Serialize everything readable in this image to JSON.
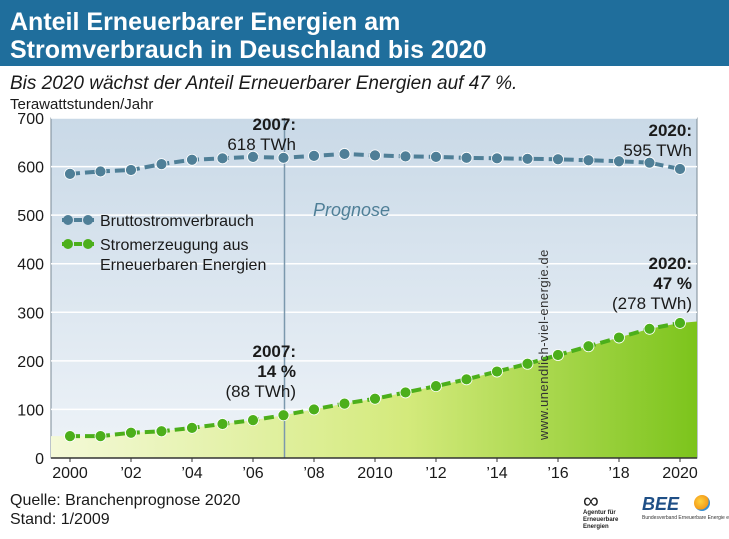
{
  "title_lines": [
    "Anteil Erneuerbarer Energien am",
    "Stromverbrauch in Deuschland bis 2020"
  ],
  "subtitle": "Bis 2020 wächst der Anteil Erneuerbarer Energien auf 47 %.",
  "source_lines": [
    "Quelle: Branchenprognose 2020",
    "Stand: 1/2009"
  ],
  "watermark": "www.unendlich-viel-energie.de",
  "logos": {
    "agentur_text": "Agentur für Erneuerbare Energien",
    "bee_name": "BEE",
    "bee_sub": "Bundesverband Erneuerbare Energie e.V."
  },
  "colors": {
    "title_bg": "#1f6e9c",
    "consumption": "#4f7f97",
    "renewables": "#4caf1b",
    "renewables_fill": "#9dd22a",
    "plot_bg": "#d6e3ee",
    "forecast_line": "#7b98ad"
  },
  "chart_data": {
    "type": "line",
    "ylabel": "Terawattstunden/Jahr",
    "ylim": [
      0,
      700
    ],
    "yticks": [
      0,
      100,
      200,
      300,
      400,
      500,
      600,
      700
    ],
    "x": [
      2000,
      2001,
      2002,
      2003,
      2004,
      2005,
      2006,
      2007,
      2008,
      2009,
      2010,
      2011,
      2012,
      2013,
      2014,
      2015,
      2016,
      2017,
      2018,
      2019,
      2020
    ],
    "xtick_labels": [
      "2000",
      "’02",
      "’04",
      "’06",
      "’08",
      "2010",
      "’12",
      "’14",
      "’16",
      "’18",
      "2020"
    ],
    "xtick_values": [
      2000,
      2002,
      2004,
      2006,
      2008,
      2010,
      2012,
      2014,
      2016,
      2018,
      2020
    ],
    "series": [
      {
        "name": "Bruttostromverbrauch",
        "values": [
          585,
          590,
          593,
          605,
          614,
          617,
          620,
          618,
          622,
          626,
          623,
          621,
          620,
          618,
          617,
          616,
          615,
          613,
          611,
          608,
          595
        ]
      },
      {
        "name": "Stromerzeugung aus Erneuerbaren Energien",
        "values": [
          45,
          45,
          52,
          55,
          62,
          70,
          78,
          88,
          100,
          112,
          122,
          135,
          148,
          162,
          178,
          194,
          212,
          230,
          248,
          266,
          278
        ]
      }
    ],
    "legend": [
      "Bruttostromverbrauch",
      "Stromerzeugung aus",
      "Erneuerbaren Energien"
    ],
    "forecast_label": "Prognose",
    "forecast_start_year": 2007,
    "annotations": {
      "cons_2007": [
        "2007:",
        "618 TWh"
      ],
      "cons_2020": [
        "2020:",
        "595 TWh"
      ],
      "ren_2007": [
        "2007:",
        "14 %",
        "(88 TWh)"
      ],
      "ren_2020": [
        "2020:",
        "47 %",
        "(278 TWh)"
      ]
    }
  }
}
